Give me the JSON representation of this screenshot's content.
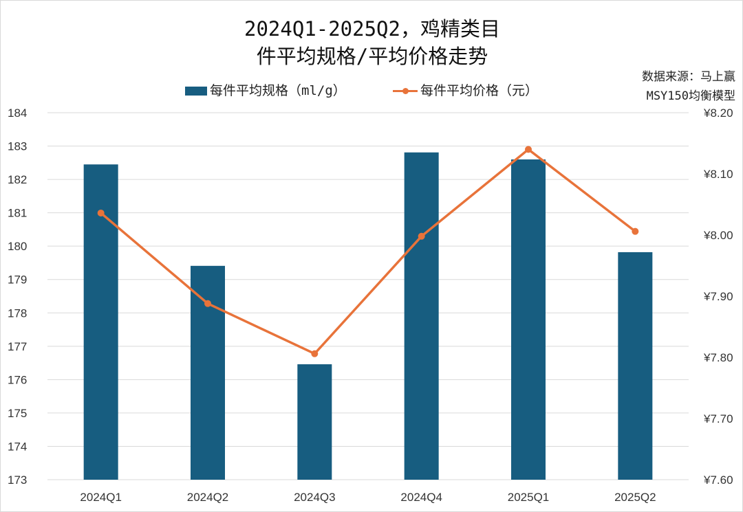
{
  "chart_data": {
    "type": "bar+line",
    "title_line1": "2024Q1-2025Q2，鸡精类目",
    "title_line2": "件平均规格/平均价格走势",
    "source_line1": "数据来源：马上赢",
    "source_line2": "MSY150均衡模型",
    "categories": [
      "2024Q1",
      "2024Q2",
      "2024Q3",
      "2024Q4",
      "2025Q1",
      "2025Q2"
    ],
    "series": [
      {
        "name": "每件平均规格（ml/g）",
        "type": "bar",
        "axis": "left",
        "color": "#175d80",
        "values": [
          182.45,
          179.41,
          176.46,
          182.81,
          182.6,
          179.82
        ]
      },
      {
        "name": "每件平均价格（元）",
        "type": "line",
        "axis": "right",
        "color": "#e8733a",
        "values": [
          8.036,
          7.888,
          7.806,
          7.998,
          8.14,
          8.006
        ]
      }
    ],
    "left_axis": {
      "ylim": [
        173,
        184
      ],
      "ticks": [
        "173",
        "174",
        "175",
        "176",
        "177",
        "178",
        "179",
        "180",
        "181",
        "182",
        "183",
        "184"
      ]
    },
    "right_axis": {
      "ylim": [
        7.6,
        8.2
      ],
      "ticks": [
        "¥7.60",
        "¥7.70",
        "¥7.80",
        "¥7.90",
        "¥8.00",
        "¥8.10",
        "¥8.20"
      ]
    },
    "grid": true,
    "legend": "top"
  }
}
